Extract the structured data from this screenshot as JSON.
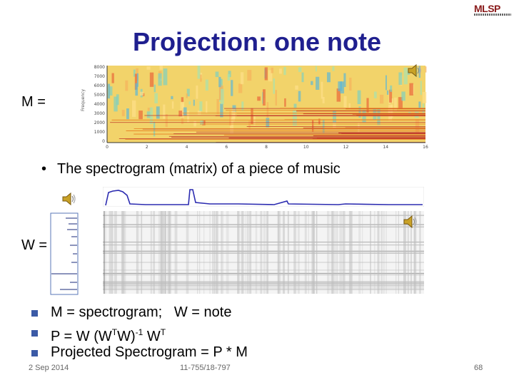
{
  "slide": {
    "title": "Projection: one note",
    "logo_text": "MLSP",
    "m_label": "M =",
    "w_label": "W =",
    "bullet_intro": "The spectrogram (matrix) of a piece of music",
    "y_axis_title": "Frequency",
    "y_ticks": [
      "8000",
      "7000",
      "6000",
      "5000",
      "4000",
      "3000",
      "2000",
      "1000",
      "0"
    ],
    "x_ticks": [
      "0",
      "2",
      "4",
      "6",
      "8",
      "10",
      "12",
      "14",
      "16"
    ],
    "bullets": {
      "b1_m": "M = spectrogram;",
      "b1_w": "W = note",
      "b2_pre": "P = W (W",
      "b2_sup1": "T",
      "b2_mid": "W)",
      "b2_sup2": "-1",
      "b2_w": " W",
      "b2_sup3": "T",
      "b3": "Projected Spectrogram = P * M"
    },
    "footer": {
      "date": "2 Sep 2014",
      "course": "11-755/18-797",
      "page": "68"
    },
    "icons": [
      "speaker-icon",
      "speaker-icon",
      "speaker-icon"
    ],
    "colors": {
      "title": "#1f1f8f",
      "bullet_square": "#3b5aa6",
      "plot_line": "#2b2bb0"
    }
  }
}
